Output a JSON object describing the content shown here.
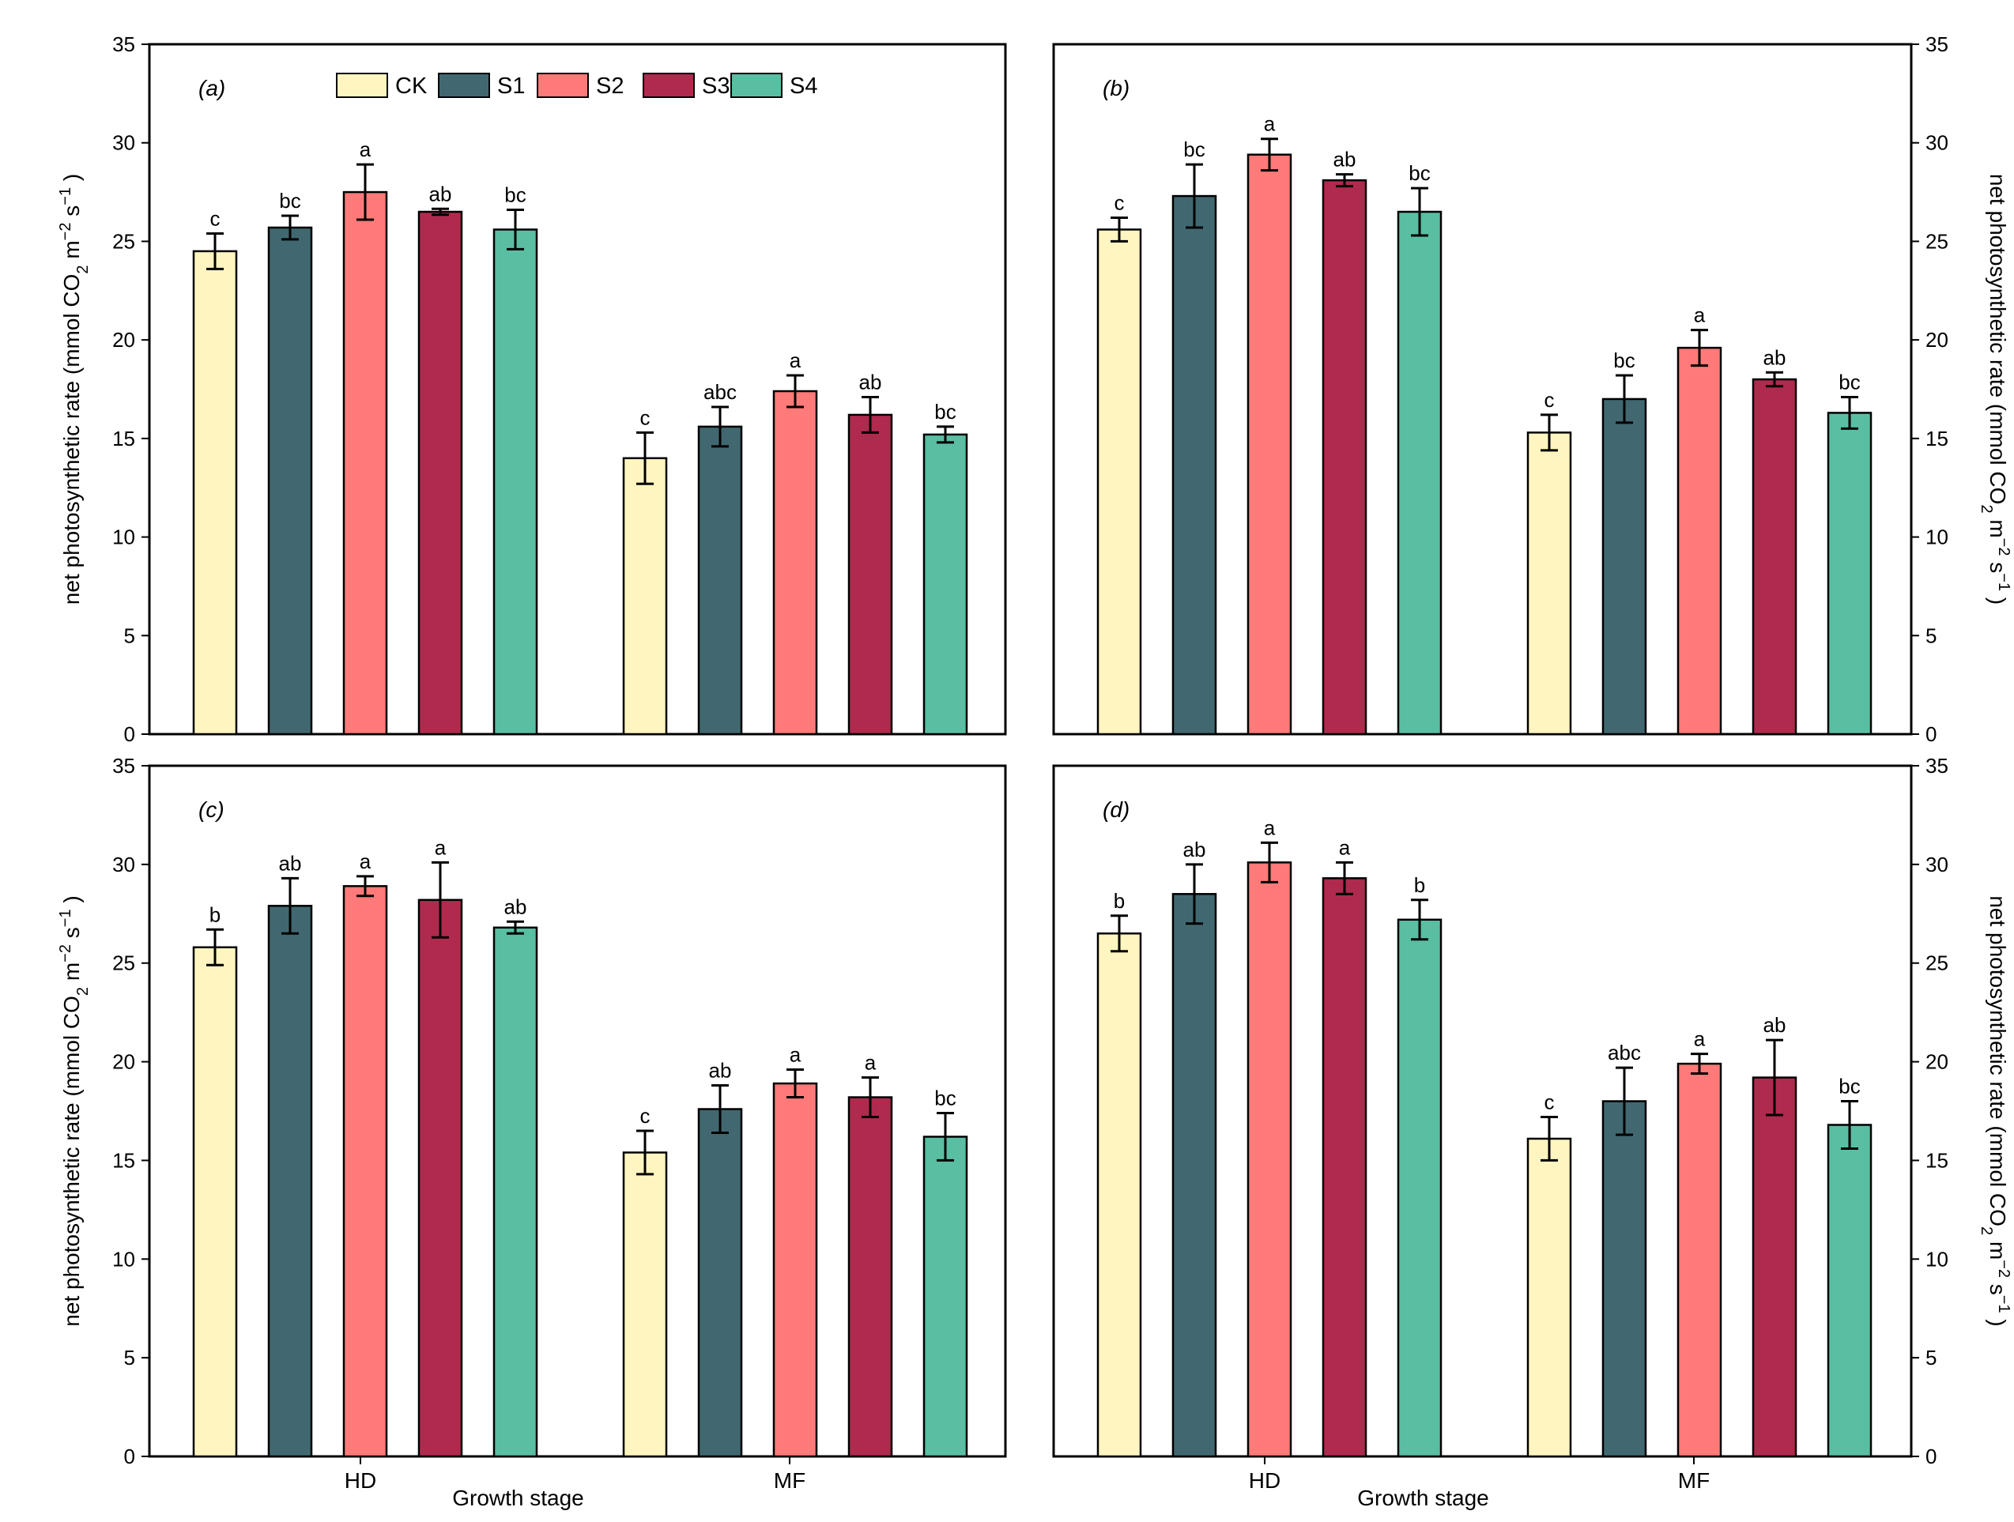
{
  "figure": {
    "y_axis_title": "net photosynthetic rate (mmol CO2 m-2 s-1)",
    "y_axis_title_parts": {
      "prefix": "net photosynthetic rate (mmol CO",
      "sub": "2",
      "m_part": " m",
      "sup1": "−2",
      "s_part": " s",
      "sup2": "−1",
      "suffix": " )"
    },
    "x_axis_title": "Growth stage"
  },
  "legend": [
    {
      "name": "CK",
      "color": "#FFF5C0"
    },
    {
      "name": "S1",
      "color": "#416870"
    },
    {
      "name": "S2",
      "color": "#FF7A78"
    },
    {
      "name": "S3",
      "color": "#B02A4E"
    },
    {
      "name": "S4",
      "color": "#5ABEA3"
    }
  ],
  "chart_data": [
    {
      "type": "bar",
      "panel": "(a)",
      "categories": [
        "HD",
        "MF"
      ],
      "ylim": [
        0,
        35
      ],
      "yticks": [
        0,
        5,
        10,
        15,
        20,
        25,
        30,
        35
      ],
      "ylabel_side": "left",
      "show_x_labels": false,
      "series": [
        {
          "name": "CK",
          "values": [
            24.5,
            14.0
          ],
          "errors": [
            0.9,
            1.3
          ],
          "letters": [
            "c",
            "c"
          ]
        },
        {
          "name": "S1",
          "values": [
            25.7,
            15.6
          ],
          "errors": [
            0.6,
            1.0
          ],
          "letters": [
            "bc",
            "abc"
          ]
        },
        {
          "name": "S2",
          "values": [
            27.5,
            17.4
          ],
          "errors": [
            1.4,
            0.8
          ],
          "letters": [
            "a",
            "a"
          ]
        },
        {
          "name": "S3",
          "values": [
            26.5,
            16.2
          ],
          "errors": [
            0.15,
            0.9
          ],
          "letters": [
            "ab",
            "ab"
          ]
        },
        {
          "name": "S4",
          "values": [
            25.6,
            15.2
          ],
          "errors": [
            1.0,
            0.4
          ],
          "letters": [
            "bc",
            "bc"
          ]
        }
      ]
    },
    {
      "type": "bar",
      "panel": "(b)",
      "categories": [
        "HD",
        "MF"
      ],
      "ylim": [
        0,
        35
      ],
      "yticks": [
        0,
        5,
        10,
        15,
        20,
        25,
        30,
        35
      ],
      "ylabel_side": "right",
      "show_x_labels": false,
      "series": [
        {
          "name": "CK",
          "values": [
            25.6,
            15.3
          ],
          "errors": [
            0.6,
            0.9
          ],
          "letters": [
            "c",
            "c"
          ]
        },
        {
          "name": "S1",
          "values": [
            27.3,
            17.0
          ],
          "errors": [
            1.6,
            1.2
          ],
          "letters": [
            "bc",
            "bc"
          ]
        },
        {
          "name": "S2",
          "values": [
            29.4,
            19.6
          ],
          "errors": [
            0.8,
            0.9
          ],
          "letters": [
            "a",
            "a"
          ]
        },
        {
          "name": "S3",
          "values": [
            28.1,
            18.0
          ],
          "errors": [
            0.3,
            0.35
          ],
          "letters": [
            "ab",
            "ab"
          ]
        },
        {
          "name": "S4",
          "values": [
            26.5,
            16.3
          ],
          "errors": [
            1.2,
            0.8
          ],
          "letters": [
            "bc",
            "bc"
          ]
        }
      ]
    },
    {
      "type": "bar",
      "panel": "(c)",
      "categories": [
        "HD",
        "MF"
      ],
      "ylim": [
        0,
        35
      ],
      "yticks": [
        0,
        5,
        10,
        15,
        20,
        25,
        30,
        35
      ],
      "ylabel_side": "left",
      "show_x_labels": true,
      "series": [
        {
          "name": "CK",
          "values": [
            25.8,
            15.4
          ],
          "errors": [
            0.9,
            1.1
          ],
          "letters": [
            "b",
            "c"
          ]
        },
        {
          "name": "S1",
          "values": [
            27.9,
            17.6
          ],
          "errors": [
            1.4,
            1.2
          ],
          "letters": [
            "ab",
            "ab"
          ]
        },
        {
          "name": "S2",
          "values": [
            28.9,
            18.9
          ],
          "errors": [
            0.5,
            0.7
          ],
          "letters": [
            "a",
            "a"
          ]
        },
        {
          "name": "S3",
          "values": [
            28.2,
            18.2
          ],
          "errors": [
            1.9,
            1.0
          ],
          "letters": [
            "a",
            "a"
          ]
        },
        {
          "name": "S4",
          "values": [
            26.8,
            16.2
          ],
          "errors": [
            0.3,
            1.2
          ],
          "letters": [
            "ab",
            "bc"
          ]
        }
      ]
    },
    {
      "type": "bar",
      "panel": "(d)",
      "categories": [
        "HD",
        "MF"
      ],
      "ylim": [
        0,
        35
      ],
      "yticks": [
        0,
        5,
        10,
        15,
        20,
        25,
        30,
        35
      ],
      "ylabel_side": "right",
      "show_x_labels": true,
      "series": [
        {
          "name": "CK",
          "values": [
            26.5,
            16.1
          ],
          "errors": [
            0.9,
            1.1
          ],
          "letters": [
            "b",
            "c"
          ]
        },
        {
          "name": "S1",
          "values": [
            28.5,
            18.0
          ],
          "errors": [
            1.5,
            1.7
          ],
          "letters": [
            "ab",
            "abc"
          ]
        },
        {
          "name": "S2",
          "values": [
            30.1,
            19.9
          ],
          "errors": [
            1.0,
            0.5
          ],
          "letters": [
            "a",
            "a"
          ]
        },
        {
          "name": "S3",
          "values": [
            29.3,
            19.2
          ],
          "errors": [
            0.8,
            1.9
          ],
          "letters": [
            "a",
            "ab"
          ]
        },
        {
          "name": "S4",
          "values": [
            27.2,
            16.8
          ],
          "errors": [
            1.0,
            1.2
          ],
          "letters": [
            "b",
            "bc"
          ]
        }
      ]
    }
  ]
}
